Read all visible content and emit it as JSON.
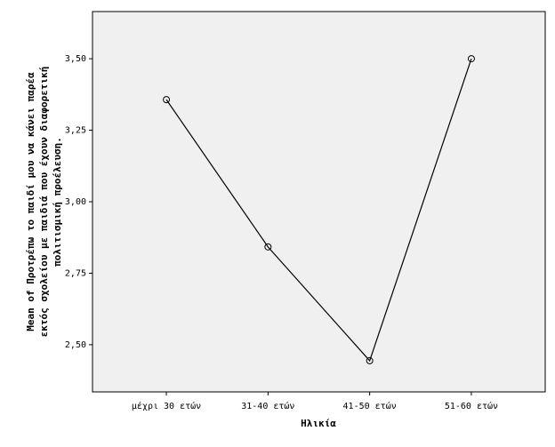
{
  "chart_data": {
    "type": "line",
    "xlabel": "Ηλικία",
    "ylabel": [
      "Mean of Προτρέπω το παιδί μου να κάνει παρέα",
      "εκτός σχολείου με παιδιά που έχουν διαφορετική",
      "πολιτισμική προέλευση."
    ],
    "categories": [
      "μέχρι 30 ετών",
      "31-40 ετών",
      "41-50 ετών",
      "51-60 ετών"
    ],
    "values": [
      3.357,
      2.842,
      2.444,
      3.5
    ],
    "color": "#000000",
    "ylim": [
      2.335,
      3.665
    ],
    "yticks": [
      {
        "value": 2.5,
        "label": "2,50"
      },
      {
        "value": 2.75,
        "label": "2,75"
      },
      {
        "value": 3.0,
        "label": "3,00"
      },
      {
        "value": 3.25,
        "label": "3,25"
      },
      {
        "value": 3.5,
        "label": "3,50"
      }
    ],
    "grid": false
  }
}
